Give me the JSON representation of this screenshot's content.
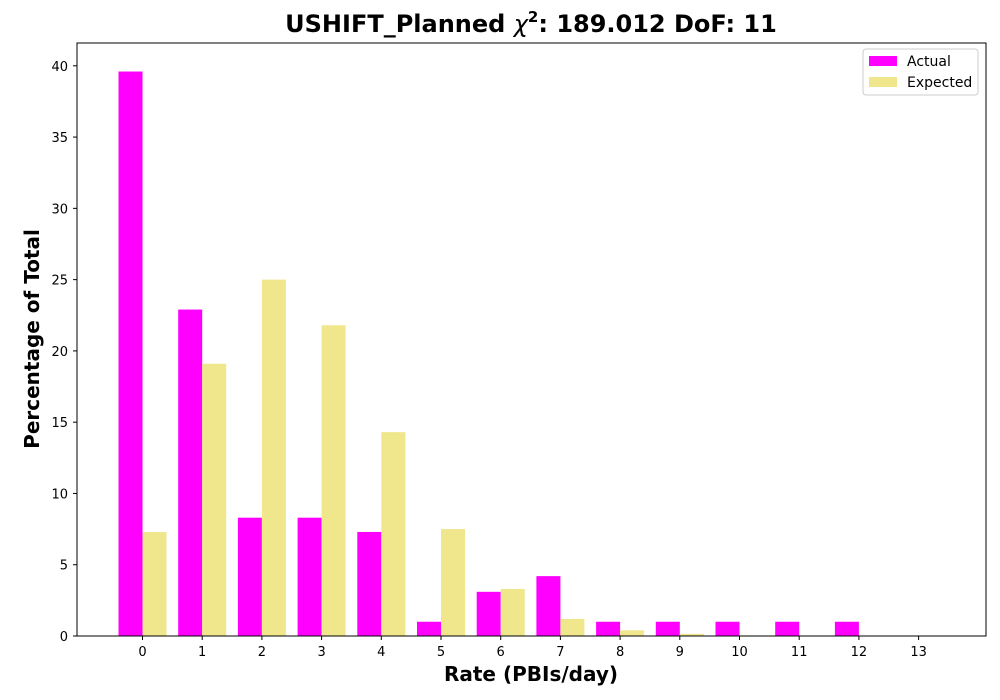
{
  "chart_data": {
    "type": "bar",
    "title_prefix": "USHIFT_Planned ",
    "title_chi": "χ",
    "title_sup": "2",
    "title_suffix": ": 189.012 DoF: 11",
    "xlabel": "Rate (PBIs/day)",
    "ylabel": "Percentage of Total",
    "categories": [
      "0",
      "1",
      "2",
      "3",
      "4",
      "5",
      "6",
      "7",
      "8",
      "9",
      "10",
      "11",
      "12",
      "13"
    ],
    "ylim": [
      0,
      41.6
    ],
    "yticks": [
      0,
      5,
      10,
      15,
      20,
      25,
      30,
      35,
      40
    ],
    "grid": false,
    "legend_position": "top-right",
    "series": [
      {
        "name": "Actual",
        "color": "#ff00ff",
        "values": [
          39.6,
          22.9,
          8.3,
          8.3,
          7.3,
          1.0,
          3.1,
          4.2,
          1.0,
          1.0,
          1.0,
          1.0,
          1.0,
          0
        ]
      },
      {
        "name": "Expected",
        "color": "#f0e68c",
        "values": [
          7.3,
          19.1,
          25.0,
          21.8,
          14.3,
          7.5,
          3.3,
          1.2,
          0.4,
          0.15,
          0.04,
          0.01,
          0.0,
          0.0
        ]
      }
    ]
  }
}
